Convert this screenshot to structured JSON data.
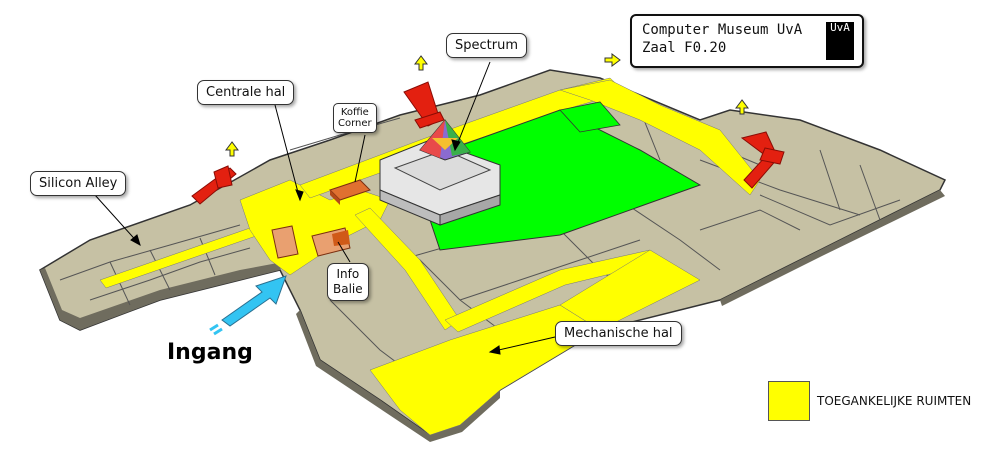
{
  "labels": {
    "centrale_hal": "Centrale hal",
    "koffie_corner_line1": "Koffie",
    "koffie_corner_line2": "Corner",
    "spectrum": "Spectrum",
    "silicon_alley": "Silicon Alley",
    "info_balie_line1": "Info",
    "info_balie_line2": "Balie",
    "mechanische_hal": "Mechanische hal",
    "ingang": "Ingang"
  },
  "museum": {
    "line1": "Computer Museum UvA",
    "line2": "Zaal F0.20",
    "logo_text": "UvA"
  },
  "legend": {
    "label": "TOEGANKELIJKE RUIMTEN",
    "color": "#ffff00"
  },
  "colors": {
    "accessible": "#ffff00",
    "floor": "#c8c3a6",
    "exhibition": "#00ff00",
    "stairs": "#e32010",
    "entrance_arrow": "#33c4f2"
  }
}
